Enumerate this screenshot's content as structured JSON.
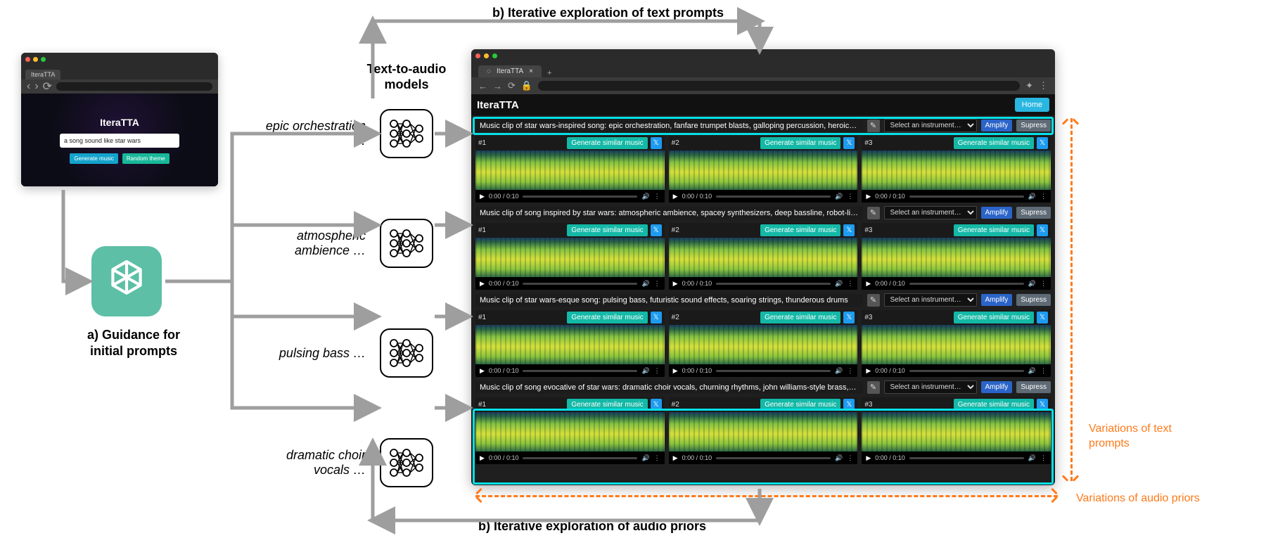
{
  "colors": {
    "arrow_grey": "#9e9e9e",
    "cyan_highlight": "#06e0e7",
    "orange": "#ff7a1a",
    "ai_icon_bg": "#5cbfa6",
    "gen_music_btn": "#14a3cc",
    "random_theme_btn": "#18b89a",
    "home_btn": "#29b6e0",
    "amplify_btn": "#2b64c9",
    "supress_btn": "#5e6a75",
    "twitter_btn": "#1d9bf0",
    "gen_similar": "#14b8a6",
    "browser_dark": "#1f1f1f",
    "titlebar": "#2b2b2b",
    "mac_red": "#ff5f56",
    "mac_yellow": "#ffbd2e",
    "mac_green": "#27c93f"
  },
  "labels": {
    "top": "b)  Iterative exploration of text prompts",
    "bottom": "b)  Iterative exploration of audio priors",
    "guidance": "a)  Guidance for initial prompts",
    "models_title": "Text-to-audio models",
    "var_text": "Variations of text prompts",
    "var_audio": "Variations of audio priors"
  },
  "mini": {
    "tab_title": "IteraTTA",
    "app_title": "IteraTTA",
    "input_value": "a song sound like star wars",
    "btn_generate": "Generate music",
    "btn_random": "Random theme"
  },
  "flow": [
    "epic orchestration …",
    "atmospheric ambience …",
    "pulsing bass …",
    "dramatic choir vocals …"
  ],
  "big": {
    "tab_title": "IteraTTA",
    "app_title": "IteraTTA",
    "home": "Home",
    "select_placeholder": "Select an instrument…",
    "amplify": "Amplify",
    "supress": "Supress",
    "gen_similar": "Generate similar music",
    "player_time": "0:00 / 0:10",
    "clip_ids": [
      "#1",
      "#2",
      "#3"
    ],
    "prompts": [
      "Music clip of star wars-inspired song: epic orchestration, fanfare trumpet blasts, galloping percussion, heroic themes",
      "Music clip of song inspired by star wars: atmospheric ambience, spacey synthesizers, deep bassline, robot-like beeps a…",
      "Music clip of star wars-esque song: pulsing bass, futuristic sound effects, soaring strings, thunderous drums",
      "Music clip of song evocative of star wars: dramatic choir vocals, churning rhythms, john williams-style brass, cinematic …"
    ]
  }
}
